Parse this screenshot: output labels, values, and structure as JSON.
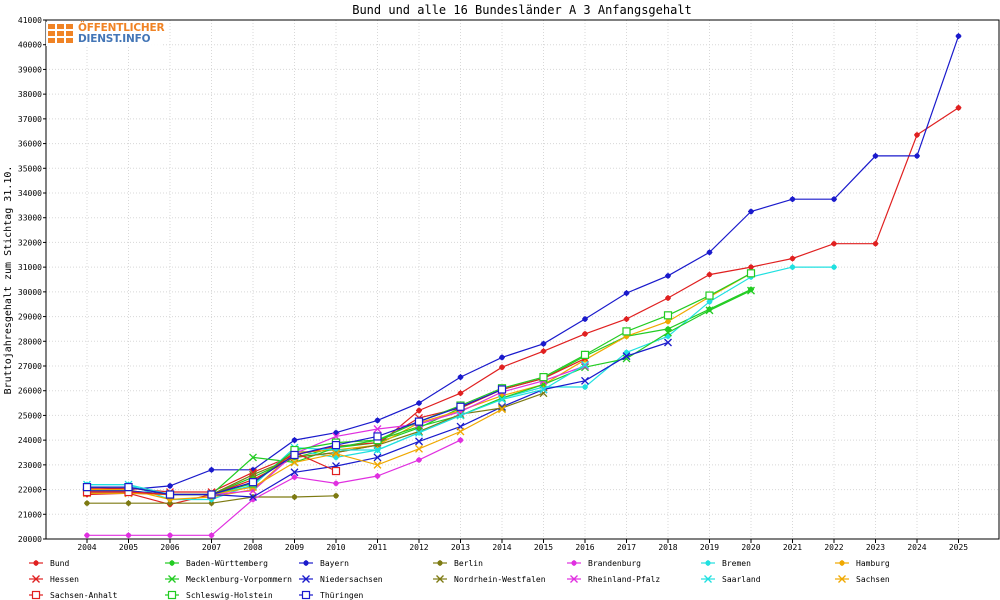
{
  "chart_data": {
    "type": "line",
    "title": "Bund und alle 16 Bundesländer A 3 Anfangsgehalt",
    "ylabel": "Bruttojahresgehalt zum Stichtag 31.10.",
    "xlabel": "",
    "ylim": [
      20000,
      41000
    ],
    "yticks": [
      20000,
      21000,
      22000,
      23000,
      24000,
      25000,
      26000,
      27000,
      28000,
      29000,
      30000,
      31000,
      32000,
      33000,
      34000,
      35000,
      36000,
      37000,
      38000,
      39000,
      40000,
      41000
    ],
    "categories": [
      "2004",
      "2005",
      "2006",
      "2007",
      "2008",
      "2009",
      "2010",
      "2011",
      "2012",
      "2013",
      "2014",
      "2015",
      "2016",
      "2017",
      "2018",
      "2019",
      "2020",
      "2021",
      "2022",
      "2023",
      "2024",
      "2025"
    ],
    "series": [
      {
        "name": "Bund",
        "color": "#e02020",
        "marker": "star",
        "values": [
          21800,
          21850,
          21400,
          21800,
          22400,
          23300,
          23500,
          23800,
          25200,
          25900,
          26950,
          27600,
          28300,
          28900,
          29750,
          30700,
          31000,
          31350,
          31950,
          31950,
          36350,
          37450
        ]
      },
      {
        "name": "Baden-Württemberg",
        "color": "#22cc22",
        "marker": "star",
        "values": [
          21900,
          21900,
          21800,
          21800,
          22500,
          23300,
          23700,
          23900,
          24500,
          25300,
          26050,
          26500,
          27400,
          28200,
          28500,
          29300,
          30100,
          null,
          null,
          null,
          null,
          null
        ]
      },
      {
        "name": "Bayern",
        "color": "#1a1acc",
        "marker": "star",
        "values": [
          22100,
          22000,
          22150,
          22800,
          22800,
          24000,
          24300,
          24800,
          25500,
          26550,
          27350,
          27900,
          28900,
          29950,
          30650,
          31600,
          33250,
          33750,
          33750,
          35500,
          35500,
          40350
        ]
      },
      {
        "name": "Berlin",
        "color": "#7d7a12",
        "marker": "star",
        "values": [
          21450,
          21450,
          21450,
          21450,
          21700,
          21700,
          21750,
          null,
          null,
          null,
          null,
          null,
          null,
          null,
          null,
          null,
          null,
          null,
          null,
          null,
          null,
          null
        ]
      },
      {
        "name": "Brandenburg",
        "color": "#e030e0",
        "marker": "star",
        "values": [
          20150,
          20150,
          20150,
          20150,
          21600,
          22500,
          22250,
          22550,
          23200,
          24000,
          null,
          null,
          null,
          null,
          null,
          null,
          null,
          null,
          null,
          null,
          null,
          null
        ]
      },
      {
        "name": "Bremen",
        "color": "#20e0e0",
        "marker": "star",
        "values": [
          22200,
          22200,
          21600,
          21600,
          22200,
          23600,
          23300,
          23600,
          24300,
          25000,
          25700,
          26150,
          26150,
          27550,
          28200,
          29600,
          30600,
          31000,
          31000,
          null,
          null,
          null
        ]
      },
      {
        "name": "Hamburg",
        "color": "#f0a800",
        "marker": "star",
        "values": [
          22000,
          22000,
          21600,
          21700,
          22000,
          23500,
          23600,
          23800,
          24700,
          25200,
          25800,
          26250,
          27250,
          28200,
          28800,
          29800,
          30750,
          null,
          null,
          null,
          null,
          null
        ]
      },
      {
        "name": "Hessen",
        "color": "#e02020",
        "marker": "x",
        "values": [
          22050,
          22050,
          21900,
          21900,
          22700,
          23400,
          23750,
          23900,
          24900,
          25300,
          26050,
          26500,
          27300,
          null,
          null,
          null,
          null,
          null,
          null,
          null,
          null,
          null
        ]
      },
      {
        "name": "Mecklenburg-Vorpommern",
        "color": "#22cc22",
        "marker": "x",
        "values": [
          21950,
          21950,
          21800,
          21800,
          23300,
          23100,
          23700,
          24000,
          24550,
          25000,
          25700,
          26250,
          26950,
          27300,
          28350,
          29250,
          30050,
          null,
          null,
          null,
          null,
          null
        ]
      },
      {
        "name": "Niedersachsen",
        "color": "#1a1acc",
        "marker": "x",
        "values": [
          21950,
          21950,
          21800,
          21800,
          21700,
          22700,
          22950,
          23300,
          23950,
          24550,
          25350,
          26050,
          26400,
          27400,
          27950,
          null,
          null,
          null,
          null,
          null,
          null,
          null
        ]
      },
      {
        "name": "Nordrhein-Westfalen",
        "color": "#7d7a12",
        "marker": "x",
        "values": [
          21850,
          21850,
          21800,
          21800,
          22600,
          23300,
          23500,
          23800,
          24350,
          25050,
          25300,
          25900,
          null,
          null,
          null,
          null,
          null,
          null,
          null,
          null,
          null,
          null
        ]
      },
      {
        "name": "Rheinland-Pfalz",
        "color": "#e030e0",
        "marker": "x",
        "values": [
          21900,
          21900,
          21800,
          21800,
          21950,
          23450,
          24150,
          24450,
          24650,
          25150,
          25950,
          26400,
          27000,
          null,
          null,
          null,
          null,
          null,
          null,
          null,
          null,
          null
        ]
      },
      {
        "name": "Saarland",
        "color": "#20e0e0",
        "marker": "x",
        "values": [
          22200,
          22200,
          21800,
          21800,
          22150,
          23700,
          23600,
          23600,
          24300,
          25000,
          25650,
          26050,
          27050,
          null,
          null,
          null,
          null,
          null,
          null,
          null,
          null,
          null
        ]
      },
      {
        "name": "Sachsen",
        "color": "#f0a800",
        "marker": "x",
        "values": [
          21850,
          21850,
          21800,
          21800,
          22100,
          23100,
          23450,
          23000,
          23650,
          24350,
          25250,
          null,
          null,
          null,
          null,
          null,
          null,
          null,
          null,
          null,
          null,
          null
        ]
      },
      {
        "name": "Sachsen-Anhalt",
        "color": "#e02020",
        "marker": "square",
        "values": [
          21900,
          21900,
          21800,
          21800,
          22300,
          23500,
          22750,
          null,
          null,
          null,
          null,
          null,
          null,
          null,
          null,
          null,
          null,
          null,
          null,
          null,
          null,
          null
        ]
      },
      {
        "name": "Schleswig-Holstein",
        "color": "#22cc22",
        "marker": "square",
        "values": [
          22100,
          22100,
          21800,
          21800,
          22250,
          23600,
          23900,
          24000,
          24750,
          25400,
          26100,
          26550,
          27450,
          28400,
          29050,
          29850,
          30750,
          null,
          null,
          null,
          null,
          null
        ]
      },
      {
        "name": "Thüringen",
        "color": "#1a1acc",
        "marker": "square",
        "values": [
          22100,
          22100,
          21800,
          21800,
          22300,
          23400,
          23800,
          24150,
          24750,
          25350,
          26050,
          null,
          null,
          null,
          null,
          null,
          null,
          null,
          null,
          null,
          null,
          null
        ]
      }
    ]
  },
  "logo": {
    "line1": "ÖFFENTLICHER",
    "line2": "DIENST.INFO"
  }
}
